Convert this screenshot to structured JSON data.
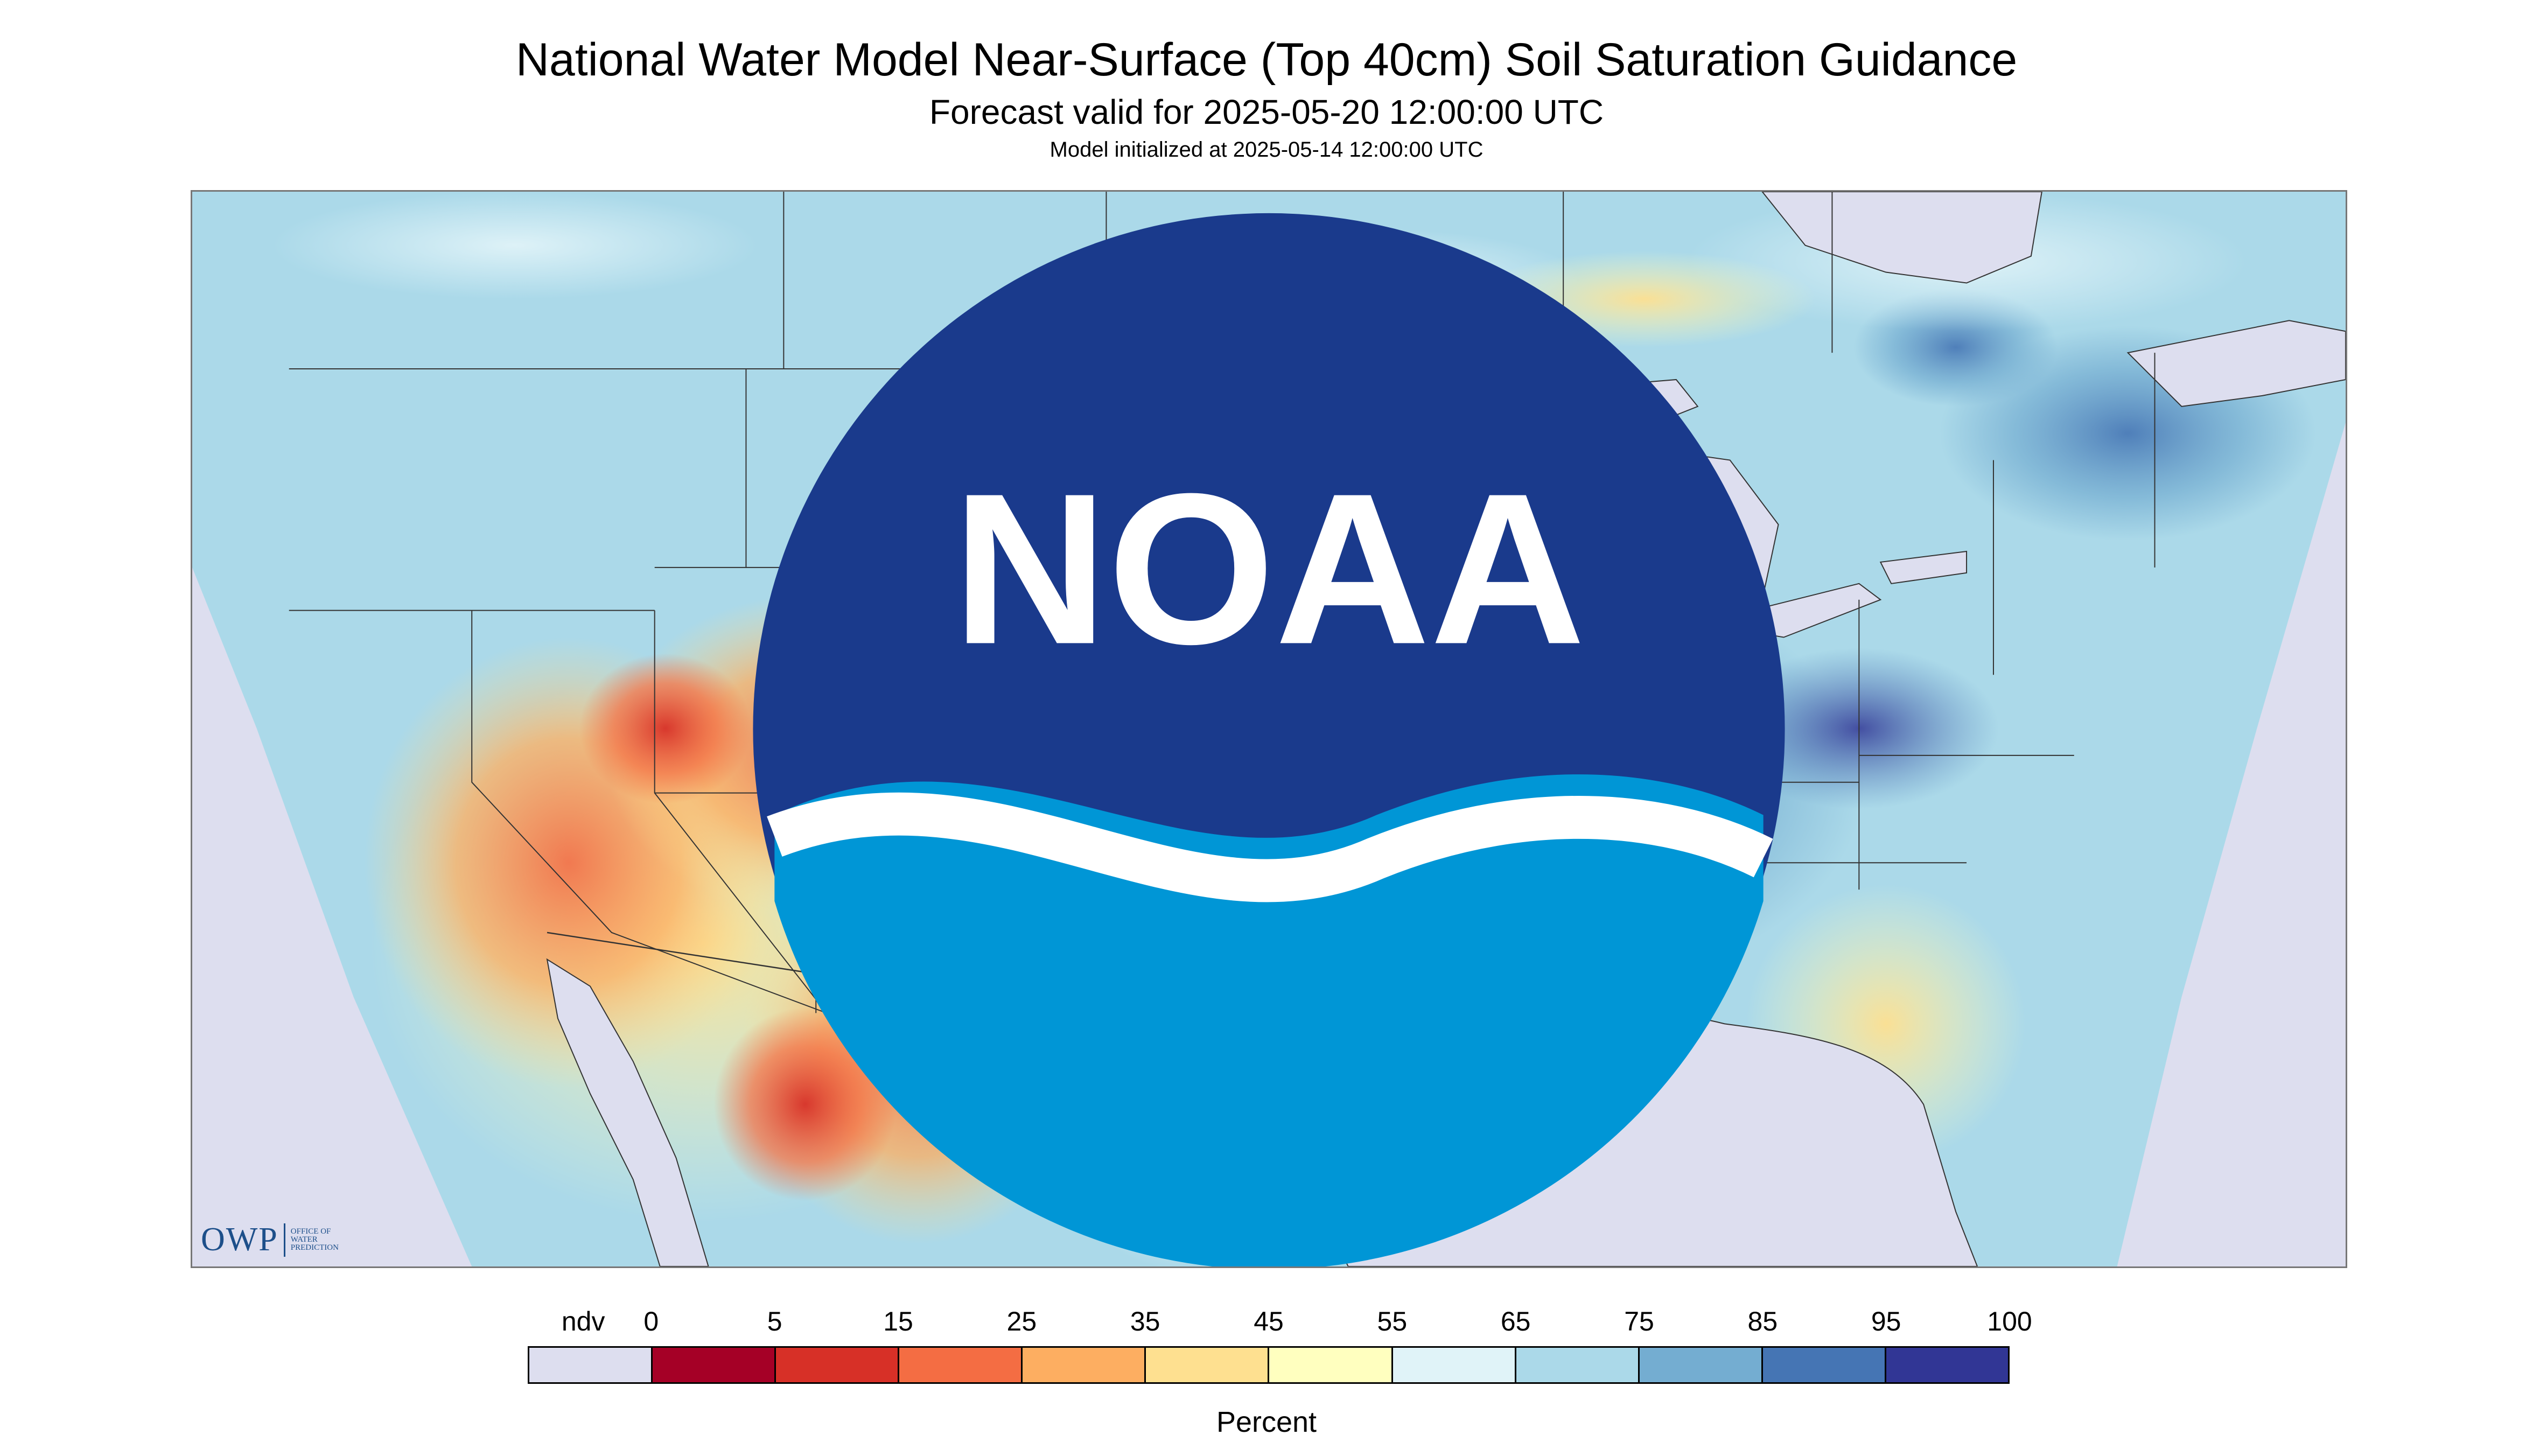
{
  "header": {
    "title": "National Water Model Near-Surface (Top 40cm) Soil Saturation Guidance",
    "subtitle": "Forecast valid for 2025-05-20 12:00:00 UTC",
    "model_init": "Model initialized at 2025-05-14 12:00:00 UTC"
  },
  "logos": {
    "owp_letters": "OWP",
    "owp_line1": "OFFICE OF",
    "owp_line2": "WATER",
    "owp_line3": "PREDICTION",
    "noaa_text": "NOAA"
  },
  "legend": {
    "title": "Percent",
    "labels": [
      "ndv",
      "0",
      "5",
      "15",
      "25",
      "35",
      "45",
      "55",
      "65",
      "75",
      "85",
      "95",
      "100"
    ],
    "colors": [
      "#dddeef",
      "#a50026",
      "#d73027",
      "#f46d43",
      "#fdae61",
      "#fee090",
      "#ffffbf",
      "#e0f3f8",
      "#abd9e9",
      "#74add1",
      "#4575b4",
      "#313695"
    ]
  },
  "map_colors": {
    "no_data": "#dddeef",
    "water": "#dddeef",
    "boundary": "#333333"
  }
}
